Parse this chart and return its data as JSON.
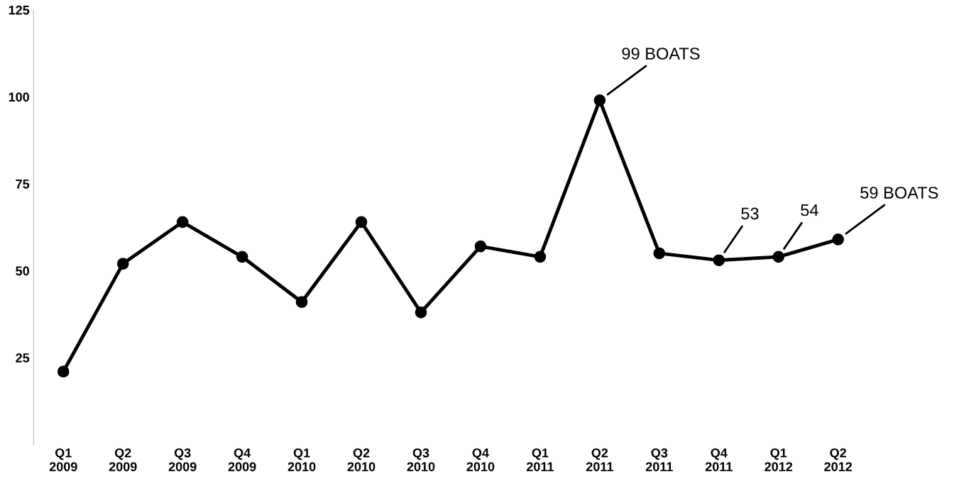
{
  "chart_data": {
    "type": "line",
    "categories": [
      "Q1\n2009",
      "Q2\n2009",
      "Q3\n2009",
      "Q4\n2009",
      "Q1\n2010",
      "Q2\n2010",
      "Q3\n2010",
      "Q4\n2010",
      "Q1\n2011",
      "Q2\n2011",
      "Q3\n2011",
      "Q4\n2011",
      "Q1\n2012",
      "Q2\n2012"
    ],
    "series": [
      {
        "color": "#000000",
        "values": [
          21,
          52,
          64,
          54,
          41,
          64,
          38,
          57,
          54,
          99,
          55,
          53,
          54,
          59
        ],
        "value_labels": [
          null,
          null,
          null,
          null,
          null,
          null,
          null,
          null,
          null,
          "99 BOATS",
          null,
          "53",
          "54",
          "59 BOATS"
        ]
      }
    ],
    "ylim": [
      0,
      125
    ],
    "yticks": [
      25,
      50,
      75,
      100,
      125
    ],
    "grid": false,
    "marker": "circle",
    "line_style": "solid"
  }
}
